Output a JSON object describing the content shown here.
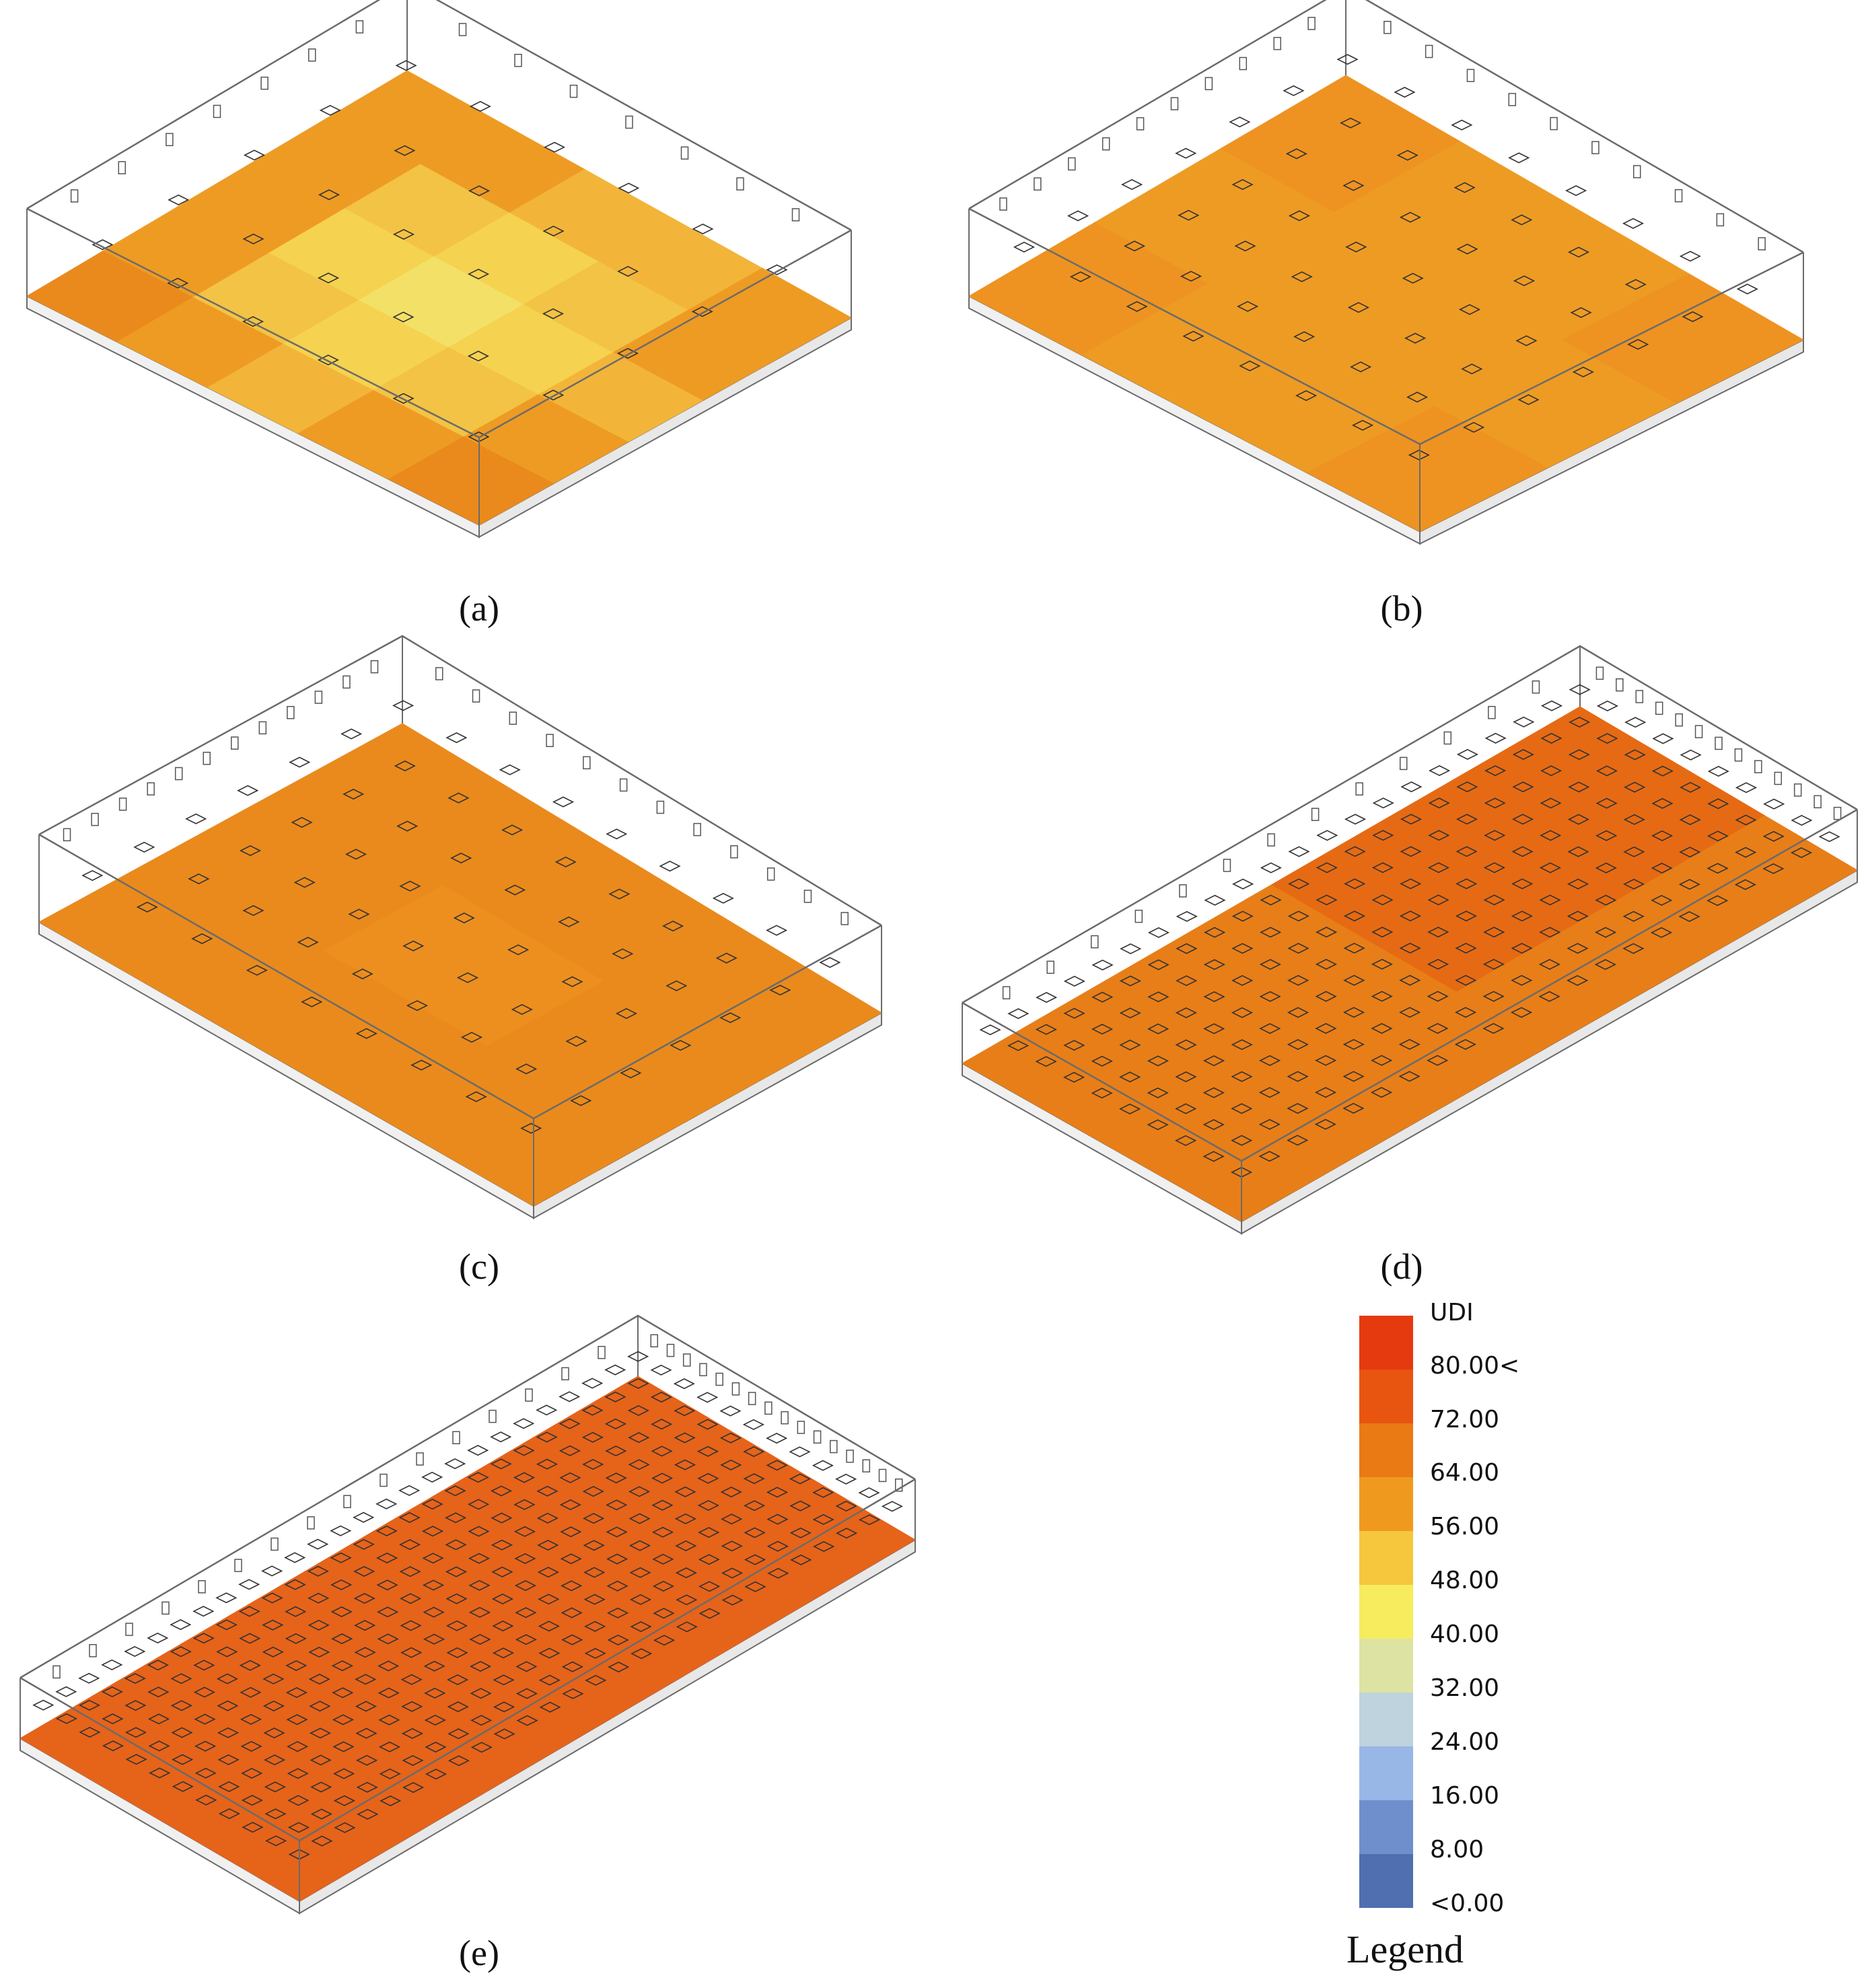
{
  "colors": {
    "udi_scale": [
      "#4f6fb0",
      "#6e8fcc",
      "#98b6e6",
      "#bed3de",
      "#dde3a2",
      "#f6ec5e",
      "#f6c63d",
      "#ef9a1f",
      "#ea7a14",
      "#e85510",
      "#e53a0f"
    ],
    "floor_top": "#ee9b24",
    "edge_line": "#6b6b6b"
  },
  "legend": {
    "unit": "UDI",
    "labels": [
      "80.00<",
      "72.00",
      "64.00",
      "56.00",
      "48.00",
      "40.00",
      "32.00",
      "24.00",
      "16.00",
      "8.00",
      "<0.00"
    ],
    "title": "Legend"
  },
  "panels": [
    {
      "caption": "(a)",
      "grid": [
        [
          "#ee9b24",
          "#ee9b24",
          "#f2b53a",
          "#f2b53a",
          "#ee9b24"
        ],
        [
          "#ee9b24",
          "#f3c345",
          "#f5d24f",
          "#f3c345",
          "#ee9b24"
        ],
        [
          "#ee9b24",
          "#f5d24f",
          "#f3e067",
          "#f5d24f",
          "#f2b53a"
        ],
        [
          "#ee9b24",
          "#f3c345",
          "#f5d24f",
          "#f3c345",
          "#ee9b24"
        ],
        [
          "#ea8a1c",
          "#ee9b24",
          "#f2b53a",
          "#ee9b24",
          "#ea8a1c"
        ]
      ],
      "skylights": 6
    },
    {
      "caption": "(b)",
      "grid": [
        [
          "#ee9321",
          "#ee9b24",
          "#ee9b24",
          "#ee9321"
        ],
        [
          "#ee9b24",
          "#ee9b24",
          "#ee9b24",
          "#ee9b24"
        ],
        [
          "#ee9321",
          "#ee9b24",
          "#ee9b24",
          "#ee9321"
        ]
      ],
      "skylights": 8
    },
    {
      "caption": "(c)",
      "grid": [
        [
          "#ea8a1c",
          "#ea8a1c",
          "#ea8a1c"
        ],
        [
          "#ea8a1c",
          "#ec8f1f",
          "#ea8a1c"
        ],
        [
          "#ea8a1c",
          "#ea8a1c",
          "#ea8a1c"
        ]
      ],
      "skylights": 9
    },
    {
      "caption": "(d)",
      "grid": [
        [
          "#e66a14",
          "#e66a14",
          "#e87e18"
        ],
        [
          "#e87e18",
          "#e87e18",
          "#e87e18"
        ]
      ],
      "skylights": 10
    },
    {
      "caption": "(e)",
      "grid": [
        [
          "#e6631a",
          "#e6631a"
        ],
        [
          "#e6631a",
          "#e6631a"
        ]
      ],
      "skylights": 12
    }
  ]
}
